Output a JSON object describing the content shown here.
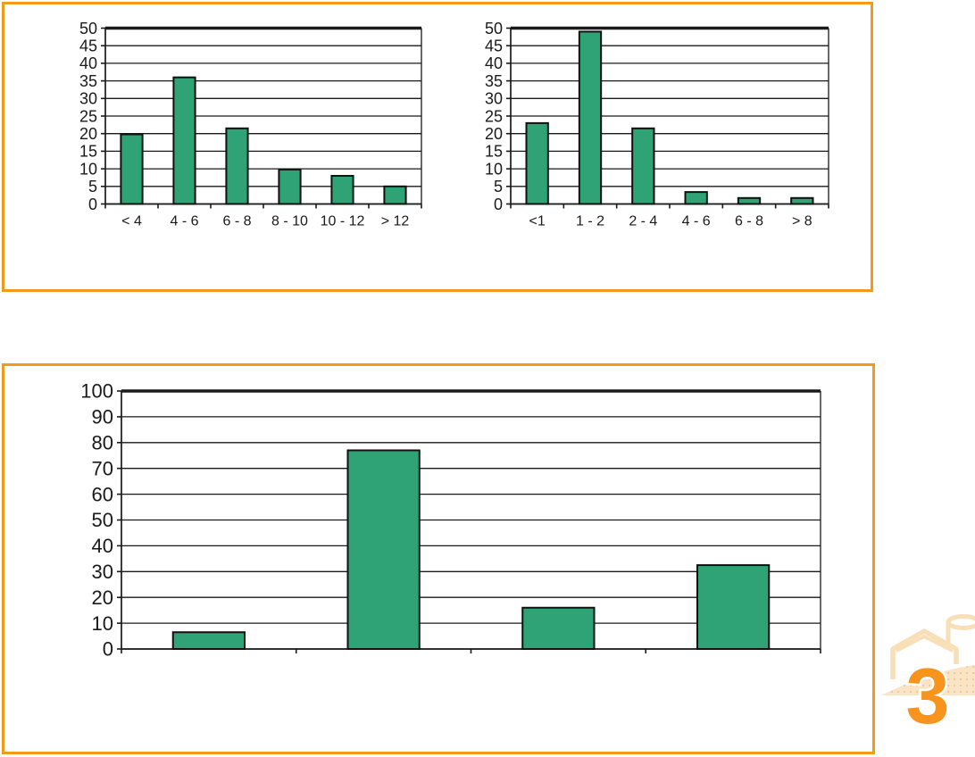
{
  "colors": {
    "panel_border": "#F49A1A",
    "bar_fill": "#2FA276",
    "bar_border": "#111111",
    "axis": "#1a1a1a",
    "logo_orange": "#F7941E",
    "logo_pale": "#F9DFB8",
    "logo_hill_fill": "#FAE4C6",
    "logo_dot": "#EFC18A"
  },
  "chart_data": [
    {
      "id": "top-left-histogram",
      "type": "bar",
      "title": "",
      "xlabel": "",
      "ylabel": "",
      "categories": [
        "< 4",
        "4 - 6",
        "6 - 8",
        "8 - 10",
        "10 - 12",
        "> 12"
      ],
      "values": [
        19.8,
        36,
        21.5,
        9.8,
        8,
        5
      ],
      "ylim": [
        0,
        50
      ],
      "ytick_step": 5,
      "yticks": [
        0,
        5,
        10,
        15,
        20,
        25,
        30,
        35,
        40,
        45,
        50
      ],
      "grid": true,
      "legend": "none"
    },
    {
      "id": "top-right-histogram",
      "type": "bar",
      "title": "",
      "xlabel": "",
      "ylabel": "",
      "categories": [
        "<1",
        "1 - 2",
        "2 - 4",
        "4 - 6",
        "6 - 8",
        "> 8"
      ],
      "values": [
        23,
        49,
        21.5,
        3.4,
        1.7,
        1.7
      ],
      "ylim": [
        0,
        50
      ],
      "ytick_step": 5,
      "yticks": [
        0,
        5,
        10,
        15,
        20,
        25,
        30,
        35,
        40,
        45,
        50
      ],
      "grid": true,
      "legend": "none"
    },
    {
      "id": "bottom-histogram",
      "type": "bar",
      "title": "",
      "xlabel": "",
      "ylabel": "",
      "categories": [
        "",
        "",
        "",
        ""
      ],
      "values": [
        6.5,
        77,
        16,
        32.5
      ],
      "ylim": [
        0,
        100
      ],
      "ytick_step": 10,
      "yticks": [
        0,
        10,
        20,
        30,
        40,
        50,
        60,
        70,
        80,
        90,
        100
      ],
      "grid": true,
      "legend": "none"
    }
  ],
  "logo": {
    "number": "3"
  }
}
